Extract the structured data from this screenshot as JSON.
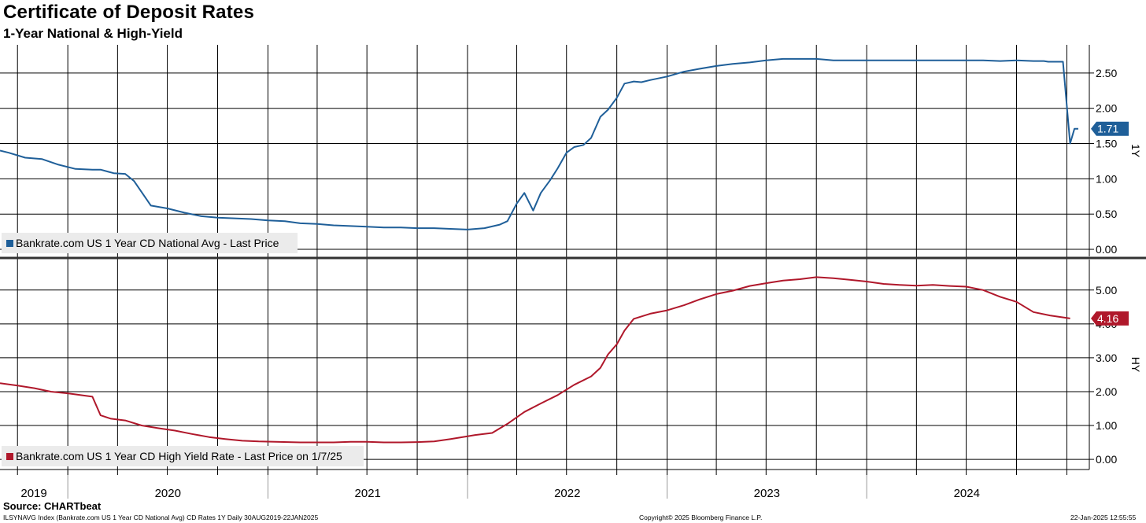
{
  "header": {
    "title": "Certificate of Deposit Rates",
    "subtitle": "1-Year National & High-Yield"
  },
  "footer": {
    "source": "Source: CHARTbeat",
    "left": "ILSYNAVG Index (Bankrate.com US 1 Year CD National Avg) CD Rates 1Y  Daily 30AUG2019-22JAN2025",
    "middle": "Copyright© 2025 Bloomberg Finance L.P.",
    "right": "22-Jan-2025 12:55:55"
  },
  "colors": {
    "national": "#1f5f99",
    "high_yield": "#b0182b",
    "grid": "#000000",
    "legend_bg": "#ebebeb"
  },
  "x_axis": {
    "year_labels": [
      "2019",
      "2020",
      "2021",
      "2022",
      "2023",
      "2024"
    ]
  },
  "chart_data": [
    {
      "type": "line",
      "panel_label": "1Y",
      "legend": "Bankrate.com US 1 Year CD National Avg - Last Price",
      "last_value_label": "1.71",
      "ylim": [
        -0.1,
        2.9
      ],
      "yticks": [
        "0.00",
        "0.50",
        "1.00",
        "1.50",
        "2.00",
        "2.50"
      ],
      "series": [
        {
          "name": "Bankrate.com US 1 Year CD National Avg - Last Price",
          "x": [
            "2019-08-30",
            "2019-09-15",
            "2019-10-15",
            "2019-11-15",
            "2019-12-15",
            "2020-01-15",
            "2020-02-15",
            "2020-03-01",
            "2020-03-15",
            "2020-03-25",
            "2020-04-15",
            "2020-05-01",
            "2020-06-01",
            "2020-07-01",
            "2020-08-01",
            "2020-09-01",
            "2020-10-01",
            "2020-11-01",
            "2020-12-01",
            "2021-01-01",
            "2021-02-01",
            "2021-03-01",
            "2021-04-01",
            "2021-05-01",
            "2021-06-01",
            "2021-07-01",
            "2021-08-01",
            "2021-09-01",
            "2021-10-01",
            "2021-11-01",
            "2021-12-01",
            "2022-01-01",
            "2022-02-01",
            "2022-03-01",
            "2022-03-15",
            "2022-04-01",
            "2022-04-15",
            "2022-05-01",
            "2022-05-15",
            "2022-06-01",
            "2022-06-15",
            "2022-07-01",
            "2022-07-15",
            "2022-08-01",
            "2022-08-15",
            "2022-09-01",
            "2022-09-15",
            "2022-10-01",
            "2022-10-15",
            "2022-11-01",
            "2022-11-15",
            "2022-12-01",
            "2023-01-01",
            "2023-02-01",
            "2023-03-01",
            "2023-04-01",
            "2023-05-01",
            "2023-06-01",
            "2023-07-01",
            "2023-08-01",
            "2023-09-01",
            "2023-10-01",
            "2023-11-01",
            "2023-12-01",
            "2024-01-01",
            "2024-02-01",
            "2024-03-01",
            "2024-04-01",
            "2024-05-01",
            "2024-06-01",
            "2024-07-01",
            "2024-08-01",
            "2024-09-01",
            "2024-10-01",
            "2024-11-01",
            "2024-11-20",
            "2024-11-28",
            "2024-12-05",
            "2024-12-15",
            "2024-12-25",
            "2025-01-07",
            "2025-01-15",
            "2025-01-22"
          ],
          "y": [
            1.4,
            1.37,
            1.3,
            1.28,
            1.2,
            1.14,
            1.13,
            1.13,
            1.1,
            1.08,
            1.07,
            0.97,
            0.62,
            0.58,
            0.52,
            0.47,
            0.45,
            0.44,
            0.43,
            0.41,
            0.4,
            0.37,
            0.36,
            0.34,
            0.33,
            0.32,
            0.31,
            0.31,
            0.3,
            0.3,
            0.29,
            0.28,
            0.3,
            0.35,
            0.4,
            0.65,
            0.8,
            0.55,
            0.8,
            0.98,
            1.15,
            1.37,
            1.45,
            1.48,
            1.58,
            1.88,
            1.98,
            2.15,
            2.35,
            2.38,
            2.37,
            2.4,
            2.45,
            2.52,
            2.56,
            2.6,
            2.63,
            2.65,
            2.68,
            2.7,
            2.7,
            2.7,
            2.68,
            2.68,
            2.68,
            2.68,
            2.68,
            2.68,
            2.68,
            2.68,
            2.68,
            2.68,
            2.67,
            2.68,
            2.67,
            2.67,
            2.66,
            2.66,
            2.66,
            2.66,
            1.5,
            1.71,
            1.71
          ]
        }
      ]
    },
    {
      "type": "line",
      "panel_label": "HY",
      "legend": "Bankrate.com US 1 Year CD High Yield Rate - Last Price on 1/7/25",
      "last_value_label": "4.16",
      "ylim": [
        -0.3,
        5.9
      ],
      "yticks": [
        "0.00",
        "1.00",
        "2.00",
        "3.00",
        "4.00",
        "5.00"
      ],
      "series": [
        {
          "name": "Bankrate.com US 1 Year CD High Yield Rate - Last Price on 1/7/25",
          "x": [
            "2019-08-30",
            "2019-10-01",
            "2019-11-01",
            "2019-12-01",
            "2020-01-01",
            "2020-02-15",
            "2020-03-01",
            "2020-03-20",
            "2020-04-15",
            "2020-05-15",
            "2020-06-15",
            "2020-07-15",
            "2020-08-15",
            "2020-09-15",
            "2020-10-15",
            "2020-11-15",
            "2020-12-15",
            "2021-01-15",
            "2021-03-01",
            "2021-04-01",
            "2021-05-01",
            "2021-06-01",
            "2021-07-01",
            "2021-08-01",
            "2021-09-01",
            "2021-10-01",
            "2021-11-01",
            "2021-12-01",
            "2022-01-01",
            "2022-01-15",
            "2022-02-15",
            "2022-03-15",
            "2022-04-15",
            "2022-05-15",
            "2022-06-15",
            "2022-07-15",
            "2022-08-15",
            "2022-09-01",
            "2022-09-15",
            "2022-10-01",
            "2022-10-15",
            "2022-11-01",
            "2022-12-01",
            "2023-01-01",
            "2023-02-01",
            "2023-03-01",
            "2023-04-01",
            "2023-05-01",
            "2023-06-01",
            "2023-07-01",
            "2023-08-01",
            "2023-09-01",
            "2023-10-01",
            "2023-11-01",
            "2023-12-01",
            "2024-01-01",
            "2024-02-01",
            "2024-03-01",
            "2024-04-01",
            "2024-05-01",
            "2024-06-01",
            "2024-07-01",
            "2024-08-01",
            "2024-09-01",
            "2024-10-01",
            "2024-11-01",
            "2024-12-01",
            "2025-01-07"
          ],
          "y": [
            2.25,
            2.18,
            2.1,
            2.0,
            1.95,
            1.85,
            1.3,
            1.2,
            1.15,
            1.0,
            0.92,
            0.85,
            0.75,
            0.66,
            0.6,
            0.55,
            0.53,
            0.52,
            0.5,
            0.5,
            0.5,
            0.52,
            0.52,
            0.5,
            0.5,
            0.51,
            0.53,
            0.6,
            0.68,
            0.72,
            0.78,
            1.05,
            1.4,
            1.65,
            1.9,
            2.2,
            2.45,
            2.7,
            3.1,
            3.4,
            3.8,
            4.15,
            4.3,
            4.4,
            4.55,
            4.72,
            4.88,
            4.98,
            5.12,
            5.2,
            5.28,
            5.32,
            5.38,
            5.35,
            5.3,
            5.25,
            5.18,
            5.15,
            5.13,
            5.15,
            5.12,
            5.1,
            5.0,
            4.8,
            4.65,
            4.35,
            4.25,
            4.16
          ]
        }
      ]
    }
  ]
}
